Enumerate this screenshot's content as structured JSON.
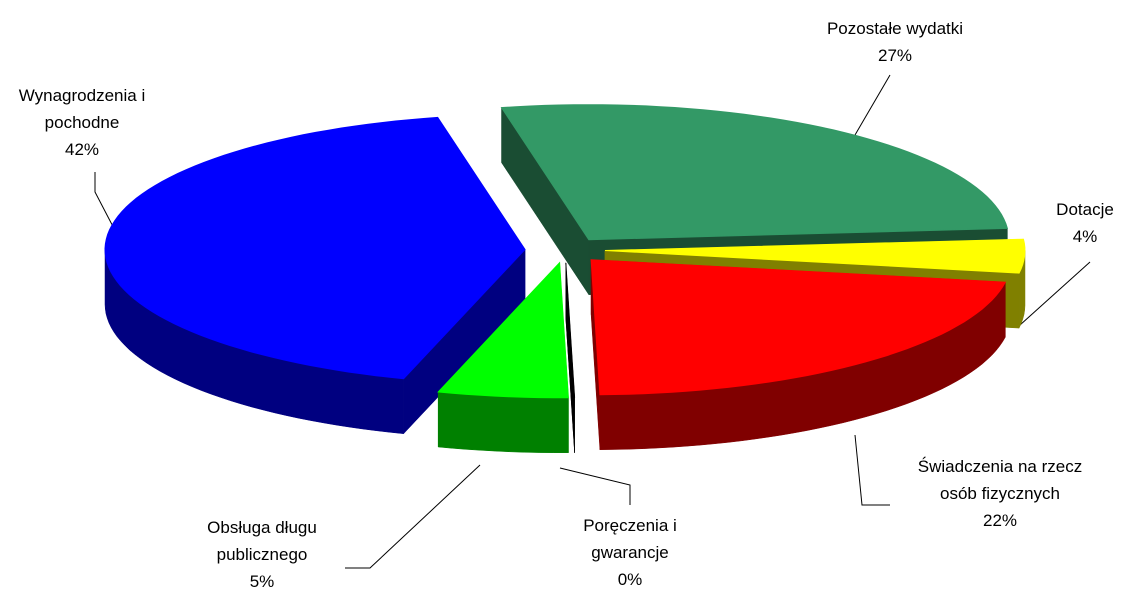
{
  "chart_data": {
    "type": "pie",
    "categories": [
      "Pozostałe wydatki",
      "Dotacje",
      "Świadczenia na rzecz osób fizycznych",
      "Poręczenia i gwarancje",
      "Obsługa długu publicznego",
      "Wynagrodzenia i pochodne"
    ],
    "values": [
      27,
      4,
      22,
      0,
      5,
      42
    ],
    "value_labels": [
      "27%",
      "4%",
      "22%",
      "0%",
      "5%",
      "42%"
    ],
    "colors": [
      "#339966",
      "#ffff00",
      "#ff0000",
      "#000000",
      "#00ff00",
      "#0000ff"
    ]
  }
}
